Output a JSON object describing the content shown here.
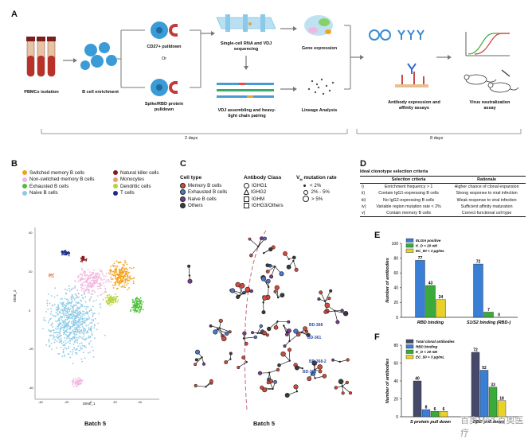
{
  "panels": {
    "a": "A",
    "b": "B",
    "c": "C",
    "d": "D",
    "e": "E",
    "f": "F"
  },
  "workflow": {
    "tube_labels": [
      "#1",
      "#2",
      "#3"
    ],
    "pbmc": "PBMCs isolation",
    "enrich": "B cell enrichment",
    "cd27": "CD27+ pulldown",
    "or": "Or",
    "spike": "Spike/RBD protein pulldown",
    "sc_seq": "Single-cell RNA and VDJ sequencing",
    "vdj": "VDJ assembling and heavy-light chain pairing",
    "gene": "Gene expression",
    "lineage": "Lineage Analysis",
    "antibody": "Antibody expression and affinity assays",
    "virus": "Virus neutralization assay",
    "days2": "2 days",
    "days8": "8 days"
  },
  "legend_b": {
    "left": [
      {
        "label": "Switched memory B cells",
        "color": "#f4a21c"
      },
      {
        "label": "Non-switched memory B cells",
        "color": "#f2b7e0"
      },
      {
        "label": "Exhausted B cells",
        "color": "#4fbf3a"
      },
      {
        "label": "Naive B cells",
        "color": "#8fcbe6"
      }
    ],
    "right": [
      {
        "label": "Natural killer cells",
        "color": "#8a1a1a"
      },
      {
        "label": "Monocytes",
        "color": "#e8a070"
      },
      {
        "label": "Dendritic cells",
        "color": "#b7d33a"
      },
      {
        "label": "T cells",
        "color": "#1a2a8a"
      }
    ]
  },
  "tsne": {
    "ylabel": "tSNE_2",
    "xlabel": "tSNE_1",
    "ticks_x": [
      "-40",
      "-20",
      "0",
      "20",
      "40"
    ],
    "ticks_y": [
      "40",
      "20",
      "0",
      "-20",
      "-40"
    ],
    "batch": "Batch 5"
  },
  "legend_c": {
    "cell_type_title": "Cell type",
    "cell_types": [
      {
        "label": "Memory B cells",
        "color": "#d24a3a"
      },
      {
        "label": "Exhausted B cells",
        "color": "#4a78c8"
      },
      {
        "label": "Naive B cells",
        "color": "#7a3a8a"
      },
      {
        "label": "Others",
        "color": "#3a3a3a"
      }
    ],
    "class_title": "Antibody Class",
    "classes": [
      "IGHG1",
      "IGHG2",
      "IGHM",
      "IGHG3/Others"
    ],
    "mut_title": "V",
    "mut_title_sub": "H",
    "mut_title_rest": " mutation rate",
    "mut": [
      "< 2%",
      "2% - 5%",
      "> 5%"
    ],
    "labels": [
      "BD-368",
      "BD-361",
      "BD-368-2",
      "BD-368"
    ],
    "batch": "Batch 5"
  },
  "table_d": {
    "title": "Ideal clonotype selection criteria",
    "headers": [
      "Selection criteria",
      "Rationale"
    ],
    "rows": [
      {
        "num": "i)",
        "criteria": "Enrichment frequency > 1",
        "rationale": "Higher chance of clonal expansion"
      },
      {
        "num": "ii)",
        "criteria": "Contain IgG1-expressing B cells",
        "rationale": "Strong response to viral infection"
      },
      {
        "num": "iii)",
        "criteria": "No IgG2-expressing B cells",
        "rationale": "Weak response to viral infection"
      },
      {
        "num": "iv)",
        "criteria": "Variable region mutation rate < 2%",
        "rationale": "Sufficient affinity maturation"
      },
      {
        "num": "v)",
        "criteria": "Contain memory B cells",
        "rationale": "Correct functional cell type"
      }
    ]
  },
  "chart_data": [
    {
      "type": "bar",
      "panel": "E",
      "categories": [
        "RBD binding",
        "S1/S2 binding (RBD-)"
      ],
      "series": [
        {
          "name": "ELISA positive",
          "color": "#3a7fd6",
          "values": [
            77,
            72
          ]
        },
        {
          "name": "K_D < 20 nM",
          "color": "#3aaa3a",
          "values": [
            43,
            7
          ]
        },
        {
          "name": "EC_50 < 3 μg/mL",
          "color": "#e8d22a",
          "values": [
            24,
            0
          ]
        }
      ],
      "ylabel": "Number of antibodies",
      "yticks": [
        "0",
        "20",
        "40",
        "60",
        "80",
        "100"
      ],
      "ylim": [
        0,
        100
      ]
    },
    {
      "type": "bar",
      "panel": "F",
      "categories": [
        "S protein pull down",
        "RBD pull down"
      ],
      "series": [
        {
          "name": "Total clonal antibodies",
          "color": "#45496a",
          "values": [
            40,
            72
          ]
        },
        {
          "name": "RBD binding",
          "color": "#3a7fd6",
          "values": [
            8,
            52
          ]
        },
        {
          "name": "K_D < 20 nM",
          "color": "#3aaa3a",
          "values": [
            6,
            33
          ]
        },
        {
          "name": "EC_50 < 3 μg/mL",
          "color": "#e8d22a",
          "values": [
            6,
            18
          ]
        }
      ],
      "ylabel": "Number of antibodies",
      "yticks": [
        "0",
        "20",
        "40",
        "60",
        "80"
      ],
      "ylim": [
        0,
        80
      ]
    }
  ],
  "watermark": "百奥Med 百奥医疗"
}
